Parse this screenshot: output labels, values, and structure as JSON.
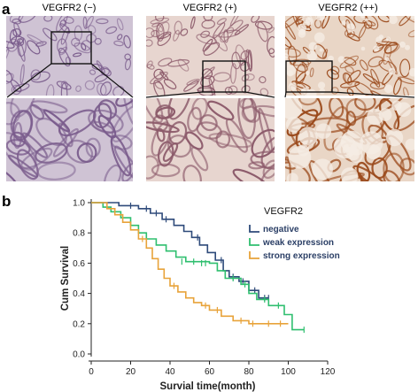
{
  "figure": {
    "panel_a_letter": "a",
    "panel_b_letter": "b"
  },
  "panel_a": {
    "columns": [
      {
        "label": "VEGFR2 (−)",
        "stain": "negative"
      },
      {
        "label": "VEGFR2 (+)",
        "stain": "weak"
      },
      {
        "label": "VEGFR2 (++)",
        "stain": "strong"
      }
    ],
    "colors": {
      "negative_bg": "#cfc3d4",
      "negative_cell": "#7a5c8c",
      "weak_bg": "#e7d5cf",
      "weak_cell": "#8c5a6a",
      "strong_bg": "#e9d6c6",
      "strong_cell": "#9b4a1c"
    }
  },
  "chart_data": {
    "type": "line",
    "title": "",
    "xlabel": "Survial time(month)",
    "ylabel": "Cum Survival",
    "xlim": [
      0,
      120
    ],
    "ylim": [
      0.0,
      1.0
    ],
    "x_ticks": [
      0,
      20,
      40,
      60,
      80,
      100,
      120
    ],
    "y_ticks": [
      0.0,
      0.2,
      0.4,
      0.6,
      0.8,
      1.0
    ],
    "x_tick_labels": [
      "0",
      "20",
      "40",
      "60",
      "80",
      "100",
      "120"
    ],
    "y_tick_labels": [
      "0.0",
      "0.2",
      "0.4",
      "0.6",
      "0.8",
      "1.0"
    ],
    "legend_title": "VEGFR2",
    "legend_position": "top-right",
    "grid": false,
    "series": [
      {
        "name": "negative",
        "color": "#2e4a7a",
        "steps": [
          [
            0,
            1.0
          ],
          [
            14,
            0.98
          ],
          [
            24,
            0.96
          ],
          [
            30,
            0.93
          ],
          [
            36,
            0.89
          ],
          [
            42,
            0.85
          ],
          [
            47,
            0.81
          ],
          [
            51,
            0.77
          ],
          [
            55,
            0.72
          ],
          [
            59,
            0.67
          ],
          [
            63,
            0.62
          ],
          [
            67,
            0.55
          ],
          [
            70,
            0.51
          ],
          [
            75,
            0.48
          ],
          [
            80,
            0.42
          ],
          [
            85,
            0.37
          ],
          [
            90,
            0.37
          ]
        ],
        "censored": [
          [
            20,
            0.98
          ],
          [
            28,
            0.96
          ],
          [
            33,
            0.93
          ],
          [
            38,
            0.89
          ],
          [
            54,
            0.77
          ],
          [
            66,
            0.62
          ],
          [
            72,
            0.51
          ],
          [
            77,
            0.48
          ],
          [
            83,
            0.42
          ],
          [
            88,
            0.37
          ],
          [
            90,
            0.37
          ]
        ]
      },
      {
        "name": "weak expression",
        "color": "#2fbf6f",
        "steps": [
          [
            0,
            1.0
          ],
          [
            6,
            0.97
          ],
          [
            10,
            0.94
          ],
          [
            15,
            0.9
          ],
          [
            20,
            0.85
          ],
          [
            24,
            0.8
          ],
          [
            28,
            0.76
          ],
          [
            33,
            0.72
          ],
          [
            38,
            0.68
          ],
          [
            43,
            0.64
          ],
          [
            48,
            0.61
          ],
          [
            60,
            0.6
          ],
          [
            64,
            0.55
          ],
          [
            68,
            0.5
          ],
          [
            76,
            0.46
          ],
          [
            80,
            0.4
          ],
          [
            84,
            0.36
          ],
          [
            90,
            0.32
          ],
          [
            98,
            0.26
          ],
          [
            102,
            0.16
          ],
          [
            108,
            0.16
          ]
        ],
        "censored": [
          [
            46,
            0.61
          ],
          [
            52,
            0.61
          ],
          [
            56,
            0.6
          ],
          [
            58,
            0.6
          ],
          [
            72,
            0.5
          ],
          [
            78,
            0.46
          ],
          [
            88,
            0.36
          ],
          [
            95,
            0.32
          ],
          [
            108,
            0.16
          ]
        ]
      },
      {
        "name": "strong expression",
        "color": "#e8a33a",
        "steps": [
          [
            0,
            1.0
          ],
          [
            8,
            0.96
          ],
          [
            12,
            0.92
          ],
          [
            16,
            0.87
          ],
          [
            20,
            0.82
          ],
          [
            24,
            0.76
          ],
          [
            28,
            0.7
          ],
          [
            31,
            0.63
          ],
          [
            34,
            0.56
          ],
          [
            37,
            0.5
          ],
          [
            40,
            0.45
          ],
          [
            44,
            0.41
          ],
          [
            48,
            0.37
          ],
          [
            52,
            0.34
          ],
          [
            56,
            0.32
          ],
          [
            60,
            0.29
          ],
          [
            66,
            0.25
          ],
          [
            72,
            0.22
          ],
          [
            80,
            0.2
          ],
          [
            100,
            0.2
          ]
        ],
        "censored": [
          [
            26,
            0.76
          ],
          [
            42,
            0.45
          ],
          [
            58,
            0.32
          ],
          [
            64,
            0.29
          ],
          [
            76,
            0.22
          ],
          [
            82,
            0.2
          ],
          [
            90,
            0.2
          ],
          [
            96,
            0.2
          ]
        ]
      }
    ]
  }
}
